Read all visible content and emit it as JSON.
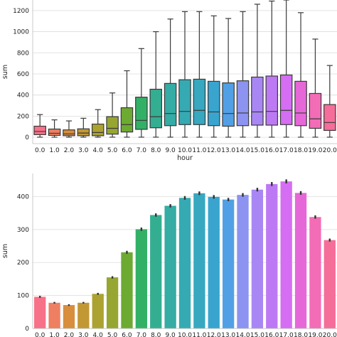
{
  "chart_data": [
    {
      "type": "box",
      "xlabel": "hour",
      "ylabel": "sum",
      "ylim": [
        -60,
        1300
      ],
      "yticks": [
        0,
        200,
        400,
        600,
        800,
        1000,
        1200
      ],
      "grid": true,
      "categories": [
        "0.0",
        "1.0",
        "2.0",
        "3.0",
        "4.0",
        "5.0",
        "6.0",
        "7.0",
        "8.0",
        "9.0",
        "10.0",
        "11.0",
        "12.0",
        "13.0",
        "14.0",
        "15.0",
        "16.0",
        "17.0",
        "18.0",
        "19.0",
        "20.0"
      ],
      "colors": [
        "#f77189",
        "#ee7f60",
        "#d88e3d",
        "#c29834",
        "#aca232",
        "#96a631",
        "#6daa31",
        "#32b166",
        "#34ae91",
        "#35aca4",
        "#36aab2",
        "#37a8c0",
        "#39a5cf",
        "#51a0e5",
        "#8c93f0",
        "#a887f4",
        "#bd79f4",
        "#d56ef2",
        "#e668d8",
        "#f36cb6",
        "#f56e99"
      ],
      "boxes": [
        {
          "min": 1,
          "q1": 25,
          "median": 55,
          "q3": 105,
          "max": 215
        },
        {
          "min": 1,
          "q1": 18,
          "median": 38,
          "q3": 78,
          "max": 165
        },
        {
          "min": 1,
          "q1": 15,
          "median": 32,
          "q3": 70,
          "max": 155
        },
        {
          "min": 1,
          "q1": 15,
          "median": 40,
          "q3": 80,
          "max": 180
        },
        {
          "min": 1,
          "q1": 15,
          "median": 45,
          "q3": 125,
          "max": 262
        },
        {
          "min": 1,
          "q1": 30,
          "median": 85,
          "q3": 195,
          "max": 420
        },
        {
          "min": 1,
          "q1": 50,
          "median": 120,
          "q3": 280,
          "max": 630
        },
        {
          "min": 1,
          "q1": 75,
          "median": 160,
          "q3": 380,
          "max": 840
        },
        {
          "min": 1,
          "q1": 90,
          "median": 195,
          "q3": 455,
          "max": 1000
        },
        {
          "min": 1,
          "q1": 110,
          "median": 225,
          "q3": 510,
          "max": 1120
        },
        {
          "min": 1,
          "q1": 120,
          "median": 245,
          "q3": 545,
          "max": 1190
        },
        {
          "min": 1,
          "q1": 120,
          "median": 255,
          "q3": 550,
          "max": 1190
        },
        {
          "min": 1,
          "q1": 110,
          "median": 240,
          "q3": 530,
          "max": 1150
        },
        {
          "min": 1,
          "q1": 105,
          "median": 225,
          "q3": 515,
          "max": 1125
        },
        {
          "min": 1,
          "q1": 110,
          "median": 230,
          "q3": 535,
          "max": 1190
        },
        {
          "min": 1,
          "q1": 115,
          "median": 240,
          "q3": 570,
          "max": 1260
        },
        {
          "min": 1,
          "q1": 115,
          "median": 245,
          "q3": 580,
          "max": 1290
        },
        {
          "min": 1,
          "q1": 120,
          "median": 255,
          "q3": 590,
          "max": 1300
        },
        {
          "min": 1,
          "q1": 110,
          "median": 230,
          "q3": 530,
          "max": 1180
        },
        {
          "min": 1,
          "q1": 85,
          "median": 175,
          "q3": 415,
          "max": 930
        },
        {
          "min": 1,
          "q1": 65,
          "median": 140,
          "q3": 310,
          "max": 680
        }
      ]
    },
    {
      "type": "bar",
      "xlabel": "",
      "ylabel": "sum",
      "ylim": [
        0,
        470
      ],
      "yticks": [
        0,
        100,
        200,
        300,
        400
      ],
      "grid": true,
      "categories": [
        "0.0",
        "1.0",
        "2.0",
        "3.0",
        "4.0",
        "5.0",
        "6.0",
        "7.0",
        "8.0",
        "9.0",
        "10.0",
        "11.0",
        "12.0",
        "13.0",
        "14.0",
        "15.0",
        "16.0",
        "17.0",
        "18.0",
        "19.0",
        "20.0"
      ],
      "colors": [
        "#f77189",
        "#ee7f60",
        "#d88e3d",
        "#c29834",
        "#aca232",
        "#96a631",
        "#6daa31",
        "#32b166",
        "#34ae91",
        "#35aca4",
        "#36aab2",
        "#37a8c0",
        "#39a5cf",
        "#51a0e5",
        "#8c93f0",
        "#a887f4",
        "#bd79f4",
        "#d56ef2",
        "#e668d8",
        "#f36cb6",
        "#f56e99"
      ],
      "values": [
        96,
        78,
        71,
        78,
        105,
        155,
        231,
        301,
        344,
        372,
        396,
        410,
        399,
        391,
        405,
        421,
        438,
        446,
        411,
        338,
        268
      ],
      "errors": [
        3,
        2.5,
        2.5,
        2.5,
        3,
        3.5,
        4.5,
        5,
        5,
        5,
        5.5,
        5.5,
        5.5,
        5,
        5.5,
        5.5,
        6,
        6,
        5.5,
        5,
        4.5
      ]
    }
  ]
}
